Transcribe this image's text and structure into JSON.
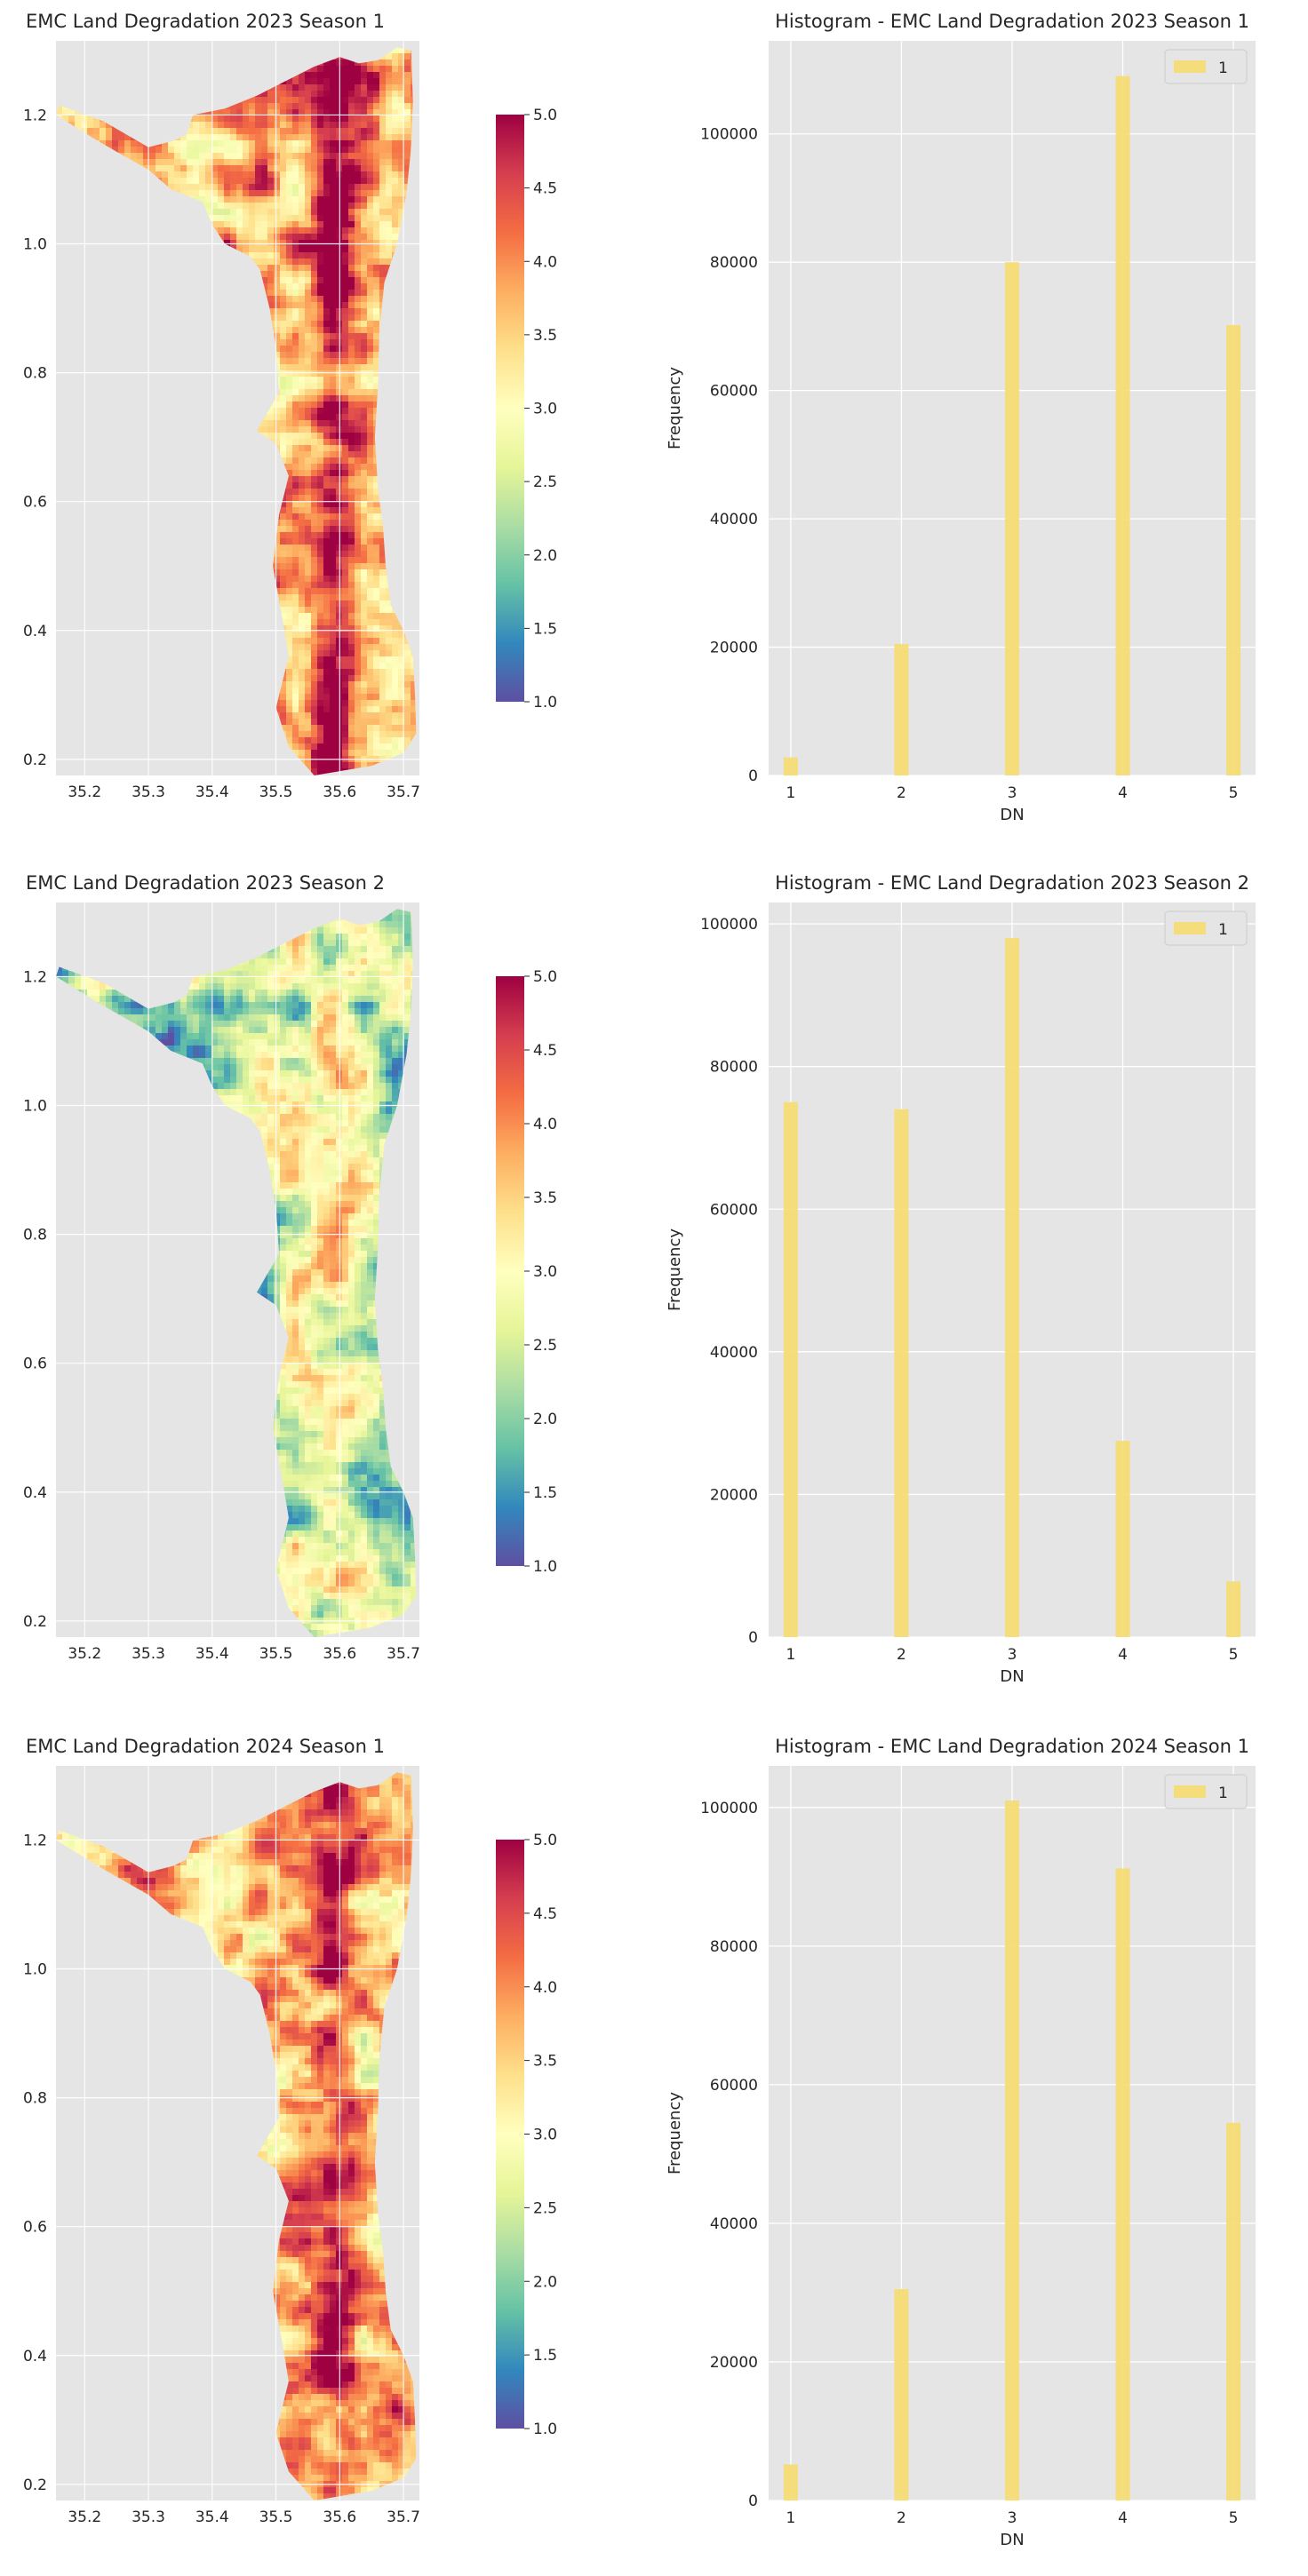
{
  "colors": {
    "axes_bg": "#e5e5e5",
    "grid": "#ffffff",
    "bar": "#f5dc6e",
    "text": "#262626",
    "colormap": [
      "#5e4fa2",
      "#3288bd",
      "#66c2a5",
      "#abdda4",
      "#e6f598",
      "#ffffbf",
      "#fee08b",
      "#fdae61",
      "#f46d43",
      "#d53e4f",
      "#9e0142"
    ]
  },
  "chart_data": [
    {
      "type": "heatmap",
      "title": "EMC Land Degradation 2023 Season 1",
      "xticks": [
        "35.2",
        "35.3",
        "35.4",
        "35.5",
        "35.6",
        "35.7"
      ],
      "yticks": [
        "0.2",
        "0.4",
        "0.6",
        "0.8",
        "1.0",
        "1.2"
      ],
      "xlim": [
        35.155,
        35.725
      ],
      "ylim": [
        0.175,
        1.315
      ],
      "colorbar": {
        "min": 1.0,
        "max": 5.0,
        "ticks": [
          "1.0",
          "1.5",
          "2.0",
          "2.5",
          "3.0",
          "3.5",
          "4.0",
          "4.5",
          "5.0"
        ]
      },
      "value_mean": 3.8,
      "grid": true
    },
    {
      "type": "bar",
      "title": "Histogram - EMC Land Degradation 2023 Season 1",
      "xlabel": "DN",
      "ylabel": "Frequency",
      "categories": [
        "1",
        "2",
        "3",
        "4",
        "5"
      ],
      "values": [
        2800,
        20500,
        80000,
        109000,
        70200
      ],
      "yticks": [
        "0",
        "20000",
        "40000",
        "60000",
        "80000",
        "100000"
      ],
      "ylim": [
        0,
        114500
      ],
      "legend": {
        "label": "1",
        "position": "top-right"
      },
      "grid": true
    },
    {
      "type": "heatmap",
      "title": "EMC Land Degradation 2023 Season 2",
      "xticks": [
        "35.2",
        "35.3",
        "35.4",
        "35.5",
        "35.6",
        "35.7"
      ],
      "yticks": [
        "0.2",
        "0.4",
        "0.6",
        "0.8",
        "1.0",
        "1.2"
      ],
      "xlim": [
        35.155,
        35.725
      ],
      "ylim": [
        0.175,
        1.315
      ],
      "colorbar": {
        "min": 1.0,
        "max": 5.0,
        "ticks": [
          "1.0",
          "1.5",
          "2.0",
          "2.5",
          "3.0",
          "3.5",
          "4.0",
          "4.5",
          "5.0"
        ]
      },
      "value_mean": 2.4,
      "grid": true
    },
    {
      "type": "bar",
      "title": "Histogram - EMC Land Degradation 2023 Season 2",
      "xlabel": "DN",
      "ylabel": "Frequency",
      "categories": [
        "1",
        "2",
        "3",
        "4",
        "5"
      ],
      "values": [
        75000,
        74000,
        98000,
        27500,
        7800
      ],
      "yticks": [
        "0",
        "20000",
        "40000",
        "60000",
        "80000",
        "100000"
      ],
      "ylim": [
        0,
        103000
      ],
      "legend": {
        "label": "1",
        "position": "top-right"
      },
      "grid": true
    },
    {
      "type": "heatmap",
      "title": "EMC Land Degradation 2024 Season 1",
      "xticks": [
        "35.2",
        "35.3",
        "35.4",
        "35.5",
        "35.6",
        "35.7"
      ],
      "yticks": [
        "0.2",
        "0.4",
        "0.6",
        "0.8",
        "1.0",
        "1.2"
      ],
      "xlim": [
        35.155,
        35.725
      ],
      "ylim": [
        0.175,
        1.315
      ],
      "colorbar": {
        "min": 1.0,
        "max": 5.0,
        "ticks": [
          "1.0",
          "1.5",
          "2.0",
          "2.5",
          "3.0",
          "3.5",
          "4.0",
          "4.5",
          "5.0"
        ]
      },
      "value_mean": 3.6,
      "grid": true
    },
    {
      "type": "bar",
      "title": "Histogram - EMC Land Degradation 2024 Season 1",
      "xlabel": "DN",
      "ylabel": "Frequency",
      "categories": [
        "1",
        "2",
        "3",
        "4",
        "5"
      ],
      "values": [
        5200,
        30500,
        101000,
        91200,
        54500
      ],
      "yticks": [
        "0",
        "20000",
        "40000",
        "60000",
        "80000",
        "100000"
      ],
      "ylim": [
        0,
        106000
      ],
      "legend": {
        "label": "1",
        "position": "top-right"
      },
      "grid": true
    }
  ]
}
